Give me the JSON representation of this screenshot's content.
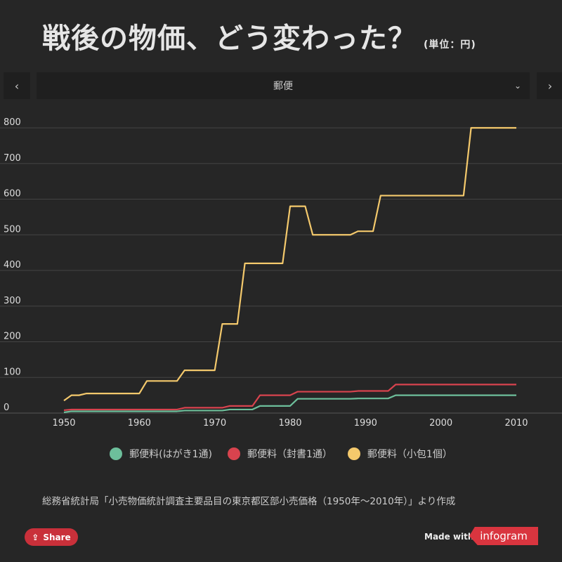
{
  "header": {
    "title": "戦後の物価、どう変わった？",
    "unit": "(単位：円)"
  },
  "nav": {
    "prev_icon": "chevron-left-icon",
    "prev": "‹",
    "next_icon": "chevron-right-icon",
    "next": "›",
    "selected": "郵便",
    "dropdown": "⌄"
  },
  "colors": {
    "postcard": "#6dbf9b",
    "letter": "#d8434e",
    "parcel": "#f4c96c",
    "background": "#262626"
  },
  "chart_data": {
    "type": "line",
    "title": "戦後の物価、どう変わった？",
    "ylabel": "円",
    "xlim": [
      1945,
      2015
    ],
    "ylim": [
      0,
      800
    ],
    "yticks": [
      0,
      100,
      200,
      300,
      400,
      500,
      600,
      700,
      800
    ],
    "xticks": [
      1950,
      1960,
      1970,
      1980,
      1990,
      2000,
      2010
    ],
    "x_start": 1950,
    "series": [
      {
        "name": "郵便料(はがき1通)",
        "color": "#6dbf9b",
        "values": [
          2,
          5,
          5,
          5,
          5,
          5,
          5,
          5,
          5,
          5,
          5,
          5,
          5,
          5,
          5,
          5,
          7,
          7,
          7,
          7,
          7,
          7,
          10,
          10,
          10,
          10,
          20,
          20,
          20,
          20,
          20,
          40,
          40,
          40,
          40,
          40,
          40,
          40,
          40,
          41,
          41,
          41,
          41,
          41,
          50,
          50,
          50,
          50,
          50,
          50,
          50,
          50,
          50,
          50,
          50,
          50,
          50,
          50,
          50,
          50,
          50
        ]
      },
      {
        "name": "郵便料（封書1通）",
        "color": "#d8434e",
        "values": [
          8,
          10,
          10,
          10,
          10,
          10,
          10,
          10,
          10,
          10,
          10,
          10,
          10,
          10,
          10,
          10,
          15,
          15,
          15,
          15,
          15,
          15,
          20,
          20,
          20,
          20,
          50,
          50,
          50,
          50,
          50,
          60,
          60,
          60,
          60,
          60,
          60,
          60,
          60,
          62,
          62,
          62,
          62,
          62,
          80,
          80,
          80,
          80,
          80,
          80,
          80,
          80,
          80,
          80,
          80,
          80,
          80,
          80,
          80,
          80,
          80
        ]
      },
      {
        "name": "郵便料（小包1個）",
        "color": "#f4c96c",
        "values": [
          35,
          50,
          50,
          55,
          55,
          55,
          55,
          55,
          55,
          55,
          55,
          90,
          90,
          90,
          90,
          90,
          120,
          120,
          120,
          120,
          120,
          250,
          250,
          250,
          420,
          420,
          420,
          420,
          420,
          420,
          580,
          580,
          580,
          500,
          500,
          500,
          500,
          500,
          500,
          510,
          510,
          510,
          610,
          610,
          610,
          610,
          610,
          610,
          610,
          610,
          610,
          610,
          610,
          610,
          800,
          800,
          800,
          800,
          800,
          800,
          800
        ]
      }
    ],
    "legend": "bottom",
    "grid": true
  },
  "source": "総務省統計局「小売物価統計調査主要品目の東京都区部小売価格（1950年〜2010年）」より作成",
  "footer": {
    "share": "Share",
    "share_icon": "share-icon",
    "made_with": "Made with",
    "logo": "infogram"
  }
}
